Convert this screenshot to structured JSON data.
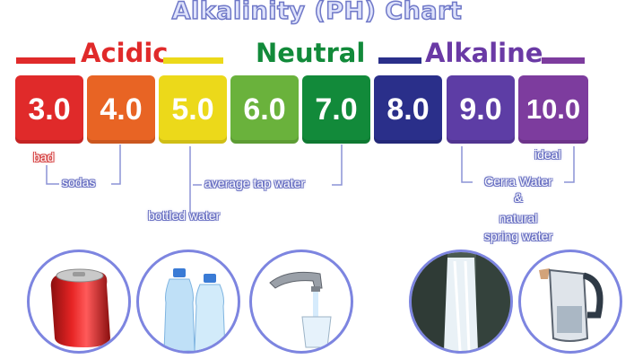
{
  "title": "Alkalinity (PH) Chart",
  "categories": {
    "acidic": "Acidic",
    "neutral": "Neutral",
    "alkaline": "Alkaline"
  },
  "scale": [
    {
      "value": "3.0",
      "color": "#e02a2a"
    },
    {
      "value": "4.0",
      "color": "#e86424"
    },
    {
      "value": "5.0",
      "color": "#ecd91a"
    },
    {
      "value": "6.0",
      "color": "#6ab23c"
    },
    {
      "value": "7.0",
      "color": "#128a3a"
    },
    {
      "value": "8.0",
      "color": "#2a2f8a"
    },
    {
      "value": "9.0",
      "color": "#5d3da5"
    },
    {
      "value": "10.0",
      "color": "#7d3c9e"
    }
  ],
  "labels": {
    "bad": "bad",
    "sodas": "sodas",
    "average_tap_water": "average tap water",
    "bottled_water": "bottled water",
    "ideal": "ideal",
    "cerra_line1": "Cerra Water",
    "cerra_line2": "&",
    "cerra_line3": "natural",
    "cerra_line4": "spring water"
  },
  "colors": {
    "acidic_band": "#e02a2a",
    "yellow_band": "#ecd91a",
    "neutral_text": "#128a3a",
    "alkaline_band": "#2a2f8a",
    "alkaline_text": "#6a3aa5",
    "circle_border": "#7d85e0"
  },
  "images": [
    "soda-can",
    "water-bottles",
    "faucet-glass",
    "waterfall",
    "pitcher"
  ]
}
